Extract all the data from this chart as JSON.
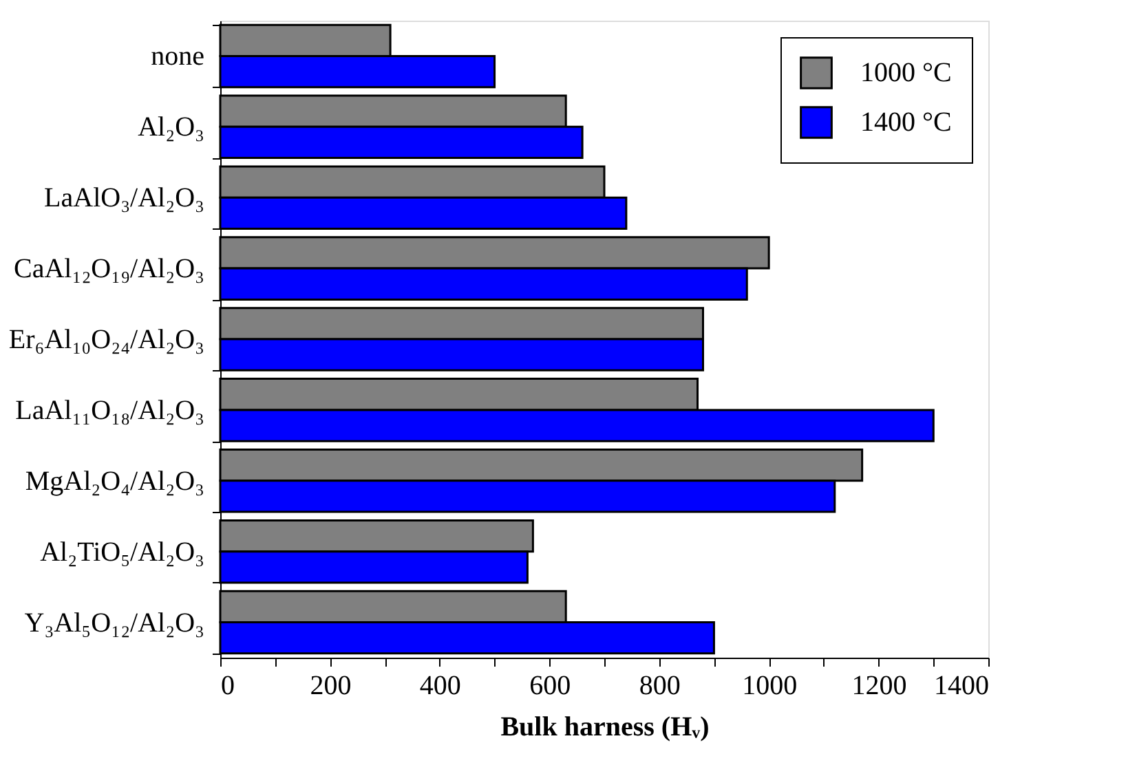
{
  "chart_data": {
    "type": "bar",
    "orientation": "horizontal",
    "xlabel": "Bulk harness (Hᵥ)",
    "categories": [
      "none",
      "Al₂O₃",
      "LaAlO₃/Al₂O₃",
      "CaAl₁₂O₁₉/Al₂O₃",
      "Er₆Al₁₀O₂₄/Al₂O₃",
      "LaAl₁₁O₁₈/Al₂O₃",
      "MgAl₂O₄/Al₂O₃",
      "Al₂TiO₅/Al₂O₃",
      "Y₃Al₅O₁₂/Al₂O₃"
    ],
    "series": [
      {
        "name": "1000 °C",
        "color": "#808080",
        "values": [
          310,
          630,
          700,
          1000,
          880,
          870,
          1170,
          570,
          630
        ]
      },
      {
        "name": "1400 °C",
        "color": "#0000ff",
        "values": [
          500,
          660,
          740,
          960,
          880,
          1300,
          1120,
          560,
          900
        ]
      }
    ],
    "xlim": [
      0,
      1400
    ],
    "xticks": [
      0,
      {
        "value": 100,
        "label": null
      },
      200,
      {
        "value": 300,
        "label": null
      },
      400,
      {
        "value": 500,
        "label": null
      },
      600,
      {
        "value": 700,
        "label": null
      },
      800,
      {
        "value": 900,
        "label": null
      },
      1000,
      {
        "value": 1100,
        "label": null
      },
      1200,
      {
        "value": 1300,
        "label": null
      },
      1400
    ],
    "grid": false,
    "legend": "top right"
  }
}
